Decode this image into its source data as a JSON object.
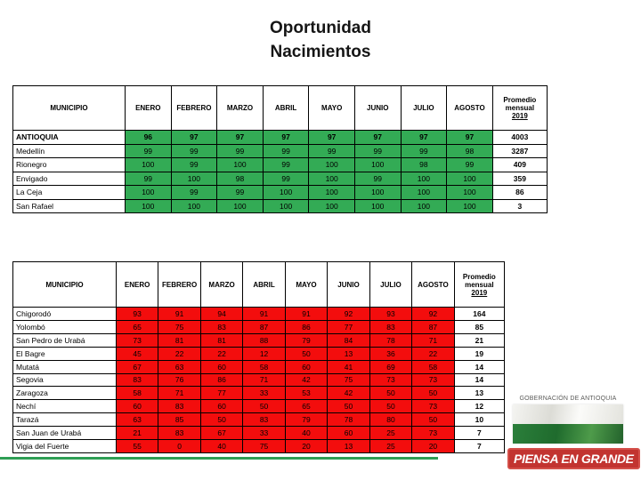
{
  "title": {
    "line1": "Oportunidad",
    "line2": "Nacimientos"
  },
  "columns": {
    "municipio": "MUNICIPIO",
    "months": [
      "ENERO",
      "FEBRERO",
      "MARZO",
      "ABRIL",
      "MAYO",
      "JUNIO",
      "JULIO",
      "AGOSTO"
    ],
    "promedio_lines": [
      "Promedio",
      "mensual",
      "2019"
    ]
  },
  "tables": {
    "green": {
      "rows": [
        {
          "municipio": "ANTIOQUIA",
          "bold": true,
          "values": [
            96,
            97,
            97,
            97,
            97,
            97,
            97,
            97
          ],
          "promedio": 4003
        },
        {
          "municipio": "Medellín",
          "bold": false,
          "values": [
            99,
            99,
            99,
            99,
            99,
            99,
            99,
            98
          ],
          "promedio": 3287
        },
        {
          "municipio": "Rionegro",
          "bold": false,
          "values": [
            100,
            99,
            100,
            99,
            100,
            100,
            98,
            99
          ],
          "promedio": 409
        },
        {
          "municipio": "Envigado",
          "bold": false,
          "values": [
            99,
            100,
            98,
            99,
            100,
            99,
            100,
            100
          ],
          "promedio": 359
        },
        {
          "municipio": "La Ceja",
          "bold": false,
          "values": [
            100,
            99,
            99,
            100,
            100,
            100,
            100,
            100
          ],
          "promedio": 86
        },
        {
          "municipio": "San Rafael",
          "bold": false,
          "values": [
            100,
            100,
            100,
            100,
            100,
            100,
            100,
            100
          ],
          "promedio": 3
        }
      ]
    },
    "red": {
      "rows": [
        {
          "municipio": "Chigorodó",
          "bold": false,
          "values": [
            93,
            91,
            94,
            91,
            91,
            92,
            93,
            92
          ],
          "promedio": 164
        },
        {
          "municipio": "Yolombó",
          "bold": false,
          "values": [
            65,
            75,
            83,
            87,
            86,
            77,
            83,
            87
          ],
          "promedio": 85
        },
        {
          "municipio": "San Pedro de Urabá",
          "bold": false,
          "values": [
            73,
            81,
            81,
            88,
            79,
            84,
            78,
            71
          ],
          "promedio": 21
        },
        {
          "municipio": "El Bagre",
          "bold": false,
          "values": [
            45,
            22,
            22,
            12,
            50,
            13,
            36,
            22
          ],
          "promedio": 19
        },
        {
          "municipio": "Mutatá",
          "bold": false,
          "values": [
            67,
            63,
            60,
            58,
            60,
            41,
            69,
            58
          ],
          "promedio": 14
        },
        {
          "municipio": "Segovia",
          "bold": false,
          "values": [
            83,
            76,
            86,
            71,
            42,
            75,
            73,
            73
          ],
          "promedio": 14
        },
        {
          "municipio": "Zaragoza",
          "bold": false,
          "values": [
            58,
            71,
            77,
            33,
            53,
            42,
            50,
            50
          ],
          "promedio": 13
        },
        {
          "municipio": "Nechí",
          "bold": false,
          "values": [
            60,
            83,
            60,
            50,
            65,
            50,
            50,
            73
          ],
          "promedio": 12
        },
        {
          "municipio": "Tarazá",
          "bold": false,
          "values": [
            63,
            85,
            50,
            83,
            79,
            78,
            80,
            50
          ],
          "promedio": 10
        },
        {
          "municipio": "San Juan de Urabá",
          "bold": false,
          "values": [
            21,
            83,
            67,
            33,
            40,
            60,
            25,
            73
          ],
          "promedio": 7
        },
        {
          "municipio": "Vigia del Fuerte",
          "bold": false,
          "values": [
            55,
            0,
            40,
            75,
            20,
            13,
            25,
            20
          ],
          "promedio": 7
        }
      ]
    }
  },
  "footer": {
    "gobernacion_label": "GOBERNACIÓN DE ANTIOQUIA",
    "badge_label": "PIENSA EN GRANDE"
  },
  "colors": {
    "green_cell": "#33AB55",
    "red_cell": "#F30D0D",
    "footer_line": "#2E9E54",
    "badge_red": "#C23430",
    "flag_green": "#2B7F3B"
  }
}
